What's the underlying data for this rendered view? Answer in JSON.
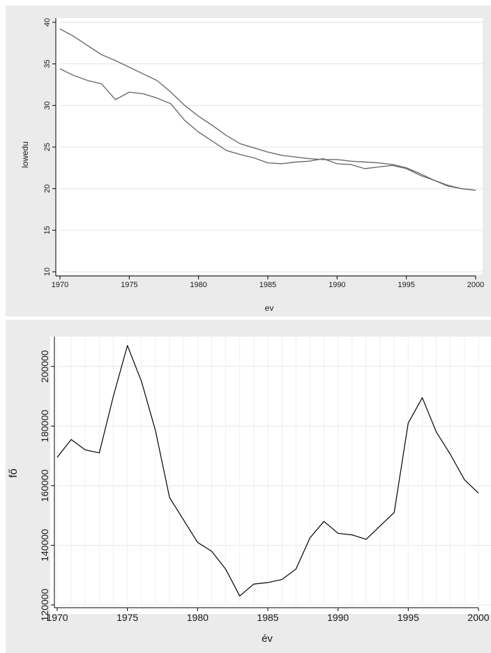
{
  "chart_data": [
    {
      "type": "line",
      "title": "",
      "xlabel": "ev",
      "ylabel": "lowedu",
      "xlim": [
        1970,
        2000
      ],
      "ylim": [
        10,
        40
      ],
      "x_ticks": [
        "1970",
        "1975",
        "1980",
        "1985",
        "1990",
        "1995",
        "2000"
      ],
      "y_ticks": [
        "10",
        "15",
        "20",
        "25",
        "30",
        "35",
        "40"
      ],
      "grid": true,
      "legend": "none",
      "colors": {
        "frame_bg": "#ebebeb",
        "plot_bg": "#ffffff",
        "grid": "#e3e3e3",
        "line": "#6b6b6b"
      },
      "x": [
        1970,
        1971,
        1972,
        1973,
        1974,
        1975,
        1976,
        1977,
        1978,
        1979,
        1980,
        1981,
        1982,
        1983,
        1984,
        1985,
        1986,
        1987,
        1988,
        1989,
        1990,
        1991,
        1992,
        1993,
        1994,
        1995,
        1996,
        1997,
        1998,
        1999,
        2000
      ],
      "series": [
        {
          "values": [
            39.2,
            38.3,
            37.2,
            36.1,
            35.4,
            34.6,
            33.8,
            33.0,
            31.6,
            30.0,
            28.7,
            27.6,
            26.4,
            25.4,
            24.9,
            24.4,
            24.0,
            23.8,
            23.6,
            23.5,
            23.5,
            23.3,
            23.2,
            23.1,
            22.9,
            22.5,
            21.8,
            21.0,
            20.4,
            20.0,
            19.8
          ]
        },
        {
          "values": [
            34.4,
            33.6,
            33.0,
            32.6,
            30.7,
            31.6,
            31.4,
            30.9,
            30.2,
            28.2,
            26.8,
            25.7,
            24.6,
            24.1,
            23.7,
            23.1,
            23.0,
            23.2,
            23.3,
            23.6,
            23.0,
            22.9,
            22.4,
            22.6,
            22.8,
            22.4,
            21.6,
            21.0,
            20.3,
            20.0,
            19.8
          ]
        }
      ]
    },
    {
      "type": "line",
      "title": "",
      "xlabel": "év",
      "ylabel": "fő",
      "xlim": [
        1970,
        2000
      ],
      "ylim": [
        120000,
        210000
      ],
      "x_ticks": [
        "1970",
        "1975",
        "1980",
        "1985",
        "1990",
        "1995",
        "2000"
      ],
      "y_ticks": [
        "120000",
        "140000",
        "160000",
        "180000",
        "200000"
      ],
      "grid": true,
      "legend": "none",
      "colors": {
        "frame_bg": "#ebebeb",
        "plot_bg": "#ffffff",
        "grid": "#e8e8e8",
        "line": "#000000"
      },
      "x": [
        1970,
        1971,
        1972,
        1973,
        1974,
        1975,
        1976,
        1977,
        1978,
        1979,
        1980,
        1981,
        1982,
        1983,
        1984,
        1985,
        1986,
        1987,
        1988,
        1989,
        1990,
        1991,
        1992,
        1993,
        1994,
        1995,
        1996,
        1997,
        1998,
        1999,
        2000
      ],
      "series": [
        {
          "values": [
            169500,
            175500,
            172000,
            171000,
            190000,
            207000,
            195000,
            178500,
            156000,
            148500,
            141000,
            138000,
            132000,
            123000,
            127000,
            127500,
            128500,
            132000,
            142500,
            148000,
            144000,
            143500,
            142000,
            146500,
            151000,
            181000,
            189500,
            178000,
            170500,
            162000,
            157500
          ]
        }
      ]
    }
  ]
}
